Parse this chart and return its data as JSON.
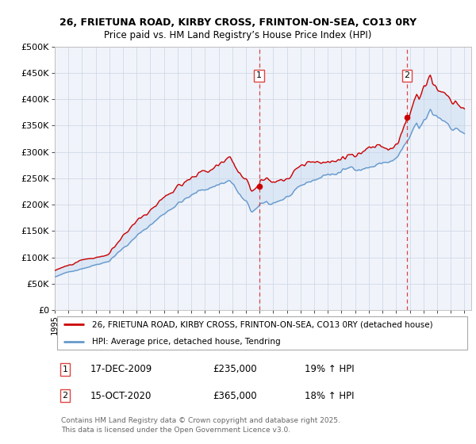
{
  "title": "26, FRIETUNA ROAD, KIRBY CROSS, FRINTON-ON-SEA, CO13 0RY",
  "subtitle": "Price paid vs. HM Land Registry’s House Price Index (HPI)",
  "ylim": [
    0,
    500000
  ],
  "yticks": [
    0,
    50000,
    100000,
    150000,
    200000,
    250000,
    300000,
    350000,
    400000,
    450000,
    500000
  ],
  "ytick_labels": [
    "£0",
    "£50K",
    "£100K",
    "£150K",
    "£200K",
    "£250K",
    "£300K",
    "£350K",
    "£400K",
    "£450K",
    "£500K"
  ],
  "fig_bg_color": "#ffffff",
  "plot_bg_color": "#f0f4fa",
  "grid_color": "#d0d8e8",
  "legend_line1": "26, FRIETUNA ROAD, KIRBY CROSS, FRINTON-ON-SEA, CO13 0RY (detached house)",
  "legend_line2": "HPI: Average price, detached house, Tendring",
  "red_line_color": "#cc0000",
  "blue_line_color": "#6699cc",
  "fill_color": "#c5d8f0",
  "vline_color": "#dd4444",
  "vline1_x": 2009.96,
  "vline2_x": 2020.79,
  "annotation1": [
    "1",
    "17-DEC-2009",
    "£235,000",
    "19% ↑ HPI"
  ],
  "annotation2": [
    "2",
    "15-OCT-2020",
    "£365,000",
    "18% ↑ HPI"
  ],
  "footer": "Contains HM Land Registry data © Crown copyright and database right 2025.\nThis data is licensed under the Open Government Licence v3.0.",
  "sale1_x": 2009.96,
  "sale1_y": 235000,
  "sale2_x": 2020.79,
  "sale2_y": 365000,
  "xlim": [
    1995.0,
    2025.5
  ],
  "xtick_start": 1995,
  "xtick_end": 2025
}
